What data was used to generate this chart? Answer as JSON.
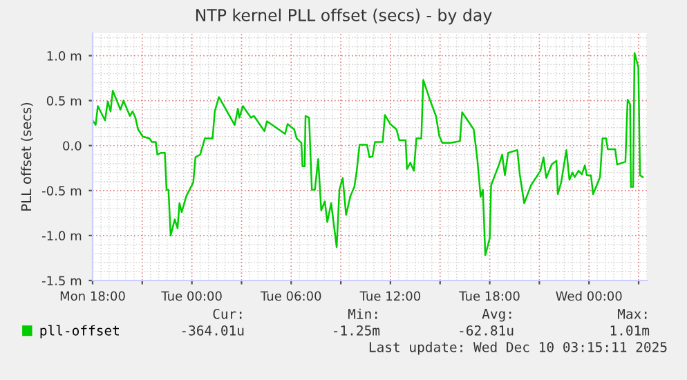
{
  "chart_data": {
    "type": "line",
    "title": "NTP kernel PLL offset (secs) - by day",
    "ylabel": "PLL offset (secs)",
    "x": [
      "2025-12-08T18:00",
      "2025-12-08T18:11",
      "2025-12-08T18:19",
      "2025-12-08T18:45",
      "2025-12-08T18:55",
      "2025-12-08T19:05",
      "2025-12-08T19:13",
      "2025-12-08T19:41",
      "2025-12-08T19:52",
      "2025-12-08T20:15",
      "2025-12-08T20:25",
      "2025-12-08T20:35",
      "2025-12-08T20:45",
      "2025-12-08T21:02",
      "2025-12-08T21:26",
      "2025-12-08T21:35",
      "2025-12-08T21:49",
      "2025-12-08T21:55",
      "2025-12-08T22:08",
      "2025-12-08T22:22",
      "2025-12-08T22:28",
      "2025-12-08T22:35",
      "2025-12-08T22:43",
      "2025-12-08T22:58",
      "2025-12-08T23:08",
      "2025-12-08T23:15",
      "2025-12-08T23:23",
      "2025-12-08T23:40",
      "2025-12-09T00:05",
      "2025-12-09T00:13",
      "2025-12-09T00:30",
      "2025-12-09T00:47",
      "2025-12-09T01:15",
      "2025-12-09T01:23",
      "2025-12-09T01:38",
      "2025-12-09T02:35",
      "2025-12-09T02:47",
      "2025-12-09T02:52",
      "2025-12-09T03:05",
      "2025-12-09T03:34",
      "2025-12-09T03:45",
      "2025-12-09T04:23",
      "2025-12-09T04:32",
      "2025-12-09T05:38",
      "2025-12-09T05:47",
      "2025-12-09T06:11",
      "2025-12-09T06:20",
      "2025-12-09T06:37",
      "2025-12-09T06:41",
      "2025-12-09T06:49",
      "2025-12-09T06:52",
      "2025-12-09T07:05",
      "2025-12-09T07:15",
      "2025-12-09T07:26",
      "2025-12-09T07:38",
      "2025-12-09T07:49",
      "2025-12-09T08:02",
      "2025-12-09T08:11",
      "2025-12-09T08:25",
      "2025-12-09T08:45",
      "2025-12-09T08:55",
      "2025-12-09T09:07",
      "2025-12-09T09:19",
      "2025-12-09T09:35",
      "2025-12-09T09:49",
      "2025-12-09T09:57",
      "2025-12-09T10:08",
      "2025-12-09T10:35",
      "2025-12-09T10:44",
      "2025-12-09T10:55",
      "2025-12-09T11:04",
      "2025-12-09T11:32",
      "2025-12-09T11:40",
      "2025-12-09T11:59",
      "2025-12-09T12:22",
      "2025-12-09T12:32",
      "2025-12-09T12:55",
      "2025-12-09T13:00",
      "2025-12-09T13:12",
      "2025-12-09T13:25",
      "2025-12-09T13:34",
      "2025-12-09T13:52",
      "2025-12-09T13:59",
      "2025-12-09T14:23",
      "2025-12-09T14:45",
      "2025-12-09T14:57",
      "2025-12-09T15:08",
      "2025-12-09T15:38",
      "2025-12-09T16:12",
      "2025-12-09T16:20",
      "2025-12-09T17:02",
      "2025-12-09T17:15",
      "2025-12-09T17:27",
      "2025-12-09T17:35",
      "2025-12-09T17:44",
      "2025-12-09T18:00",
      "2025-12-09T18:05",
      "2025-12-09T18:34",
      "2025-12-09T18:45",
      "2025-12-09T18:55",
      "2025-12-09T19:07",
      "2025-12-09T19:40",
      "2025-12-09T19:49",
      "2025-12-09T20:05",
      "2025-12-09T20:30",
      "2025-12-09T21:04",
      "2025-12-09T21:15",
      "2025-12-09T21:25",
      "2025-12-09T21:45",
      "2025-12-09T22:02",
      "2025-12-09T22:07",
      "2025-12-09T22:19",
      "2025-12-09T22:38",
      "2025-12-09T22:49",
      "2025-12-09T23:00",
      "2025-12-09T23:08",
      "2025-12-09T23:22",
      "2025-12-09T23:34",
      "2025-12-09T23:45",
      "2025-12-09T23:52",
      "2025-12-10T00:07",
      "2025-12-10T00:15",
      "2025-12-10T00:40",
      "2025-12-10T00:49",
      "2025-12-10T01:02",
      "2025-12-10T01:08",
      "2025-12-10T01:35",
      "2025-12-10T01:42",
      "2025-12-10T02:12",
      "2025-12-10T02:20",
      "2025-12-10T02:29",
      "2025-12-10T02:32",
      "2025-12-10T02:40",
      "2025-12-10T02:45",
      "2025-12-10T02:59",
      "2025-12-10T03:05",
      "2025-12-10T03:15"
    ],
    "series": [
      {
        "name": "pll-offset",
        "color": "#00cc00",
        "values": [
          0.28,
          0.23,
          0.44,
          0.28,
          0.49,
          0.38,
          0.61,
          0.4,
          0.5,
          0.33,
          0.38,
          0.31,
          0.18,
          0.1,
          0.08,
          0.04,
          0.04,
          -0.1,
          -0.08,
          -0.08,
          -0.49,
          -0.49,
          -1.0,
          -0.82,
          -0.92,
          -0.64,
          -0.74,
          -0.56,
          -0.41,
          -0.13,
          -0.1,
          0.08,
          0.08,
          0.38,
          0.54,
          0.23,
          0.41,
          0.31,
          0.44,
          0.31,
          0.33,
          0.16,
          0.27,
          0.13,
          0.24,
          0.18,
          0.08,
          0.03,
          -0.23,
          -0.23,
          0.33,
          0.31,
          -0.49,
          -0.49,
          -0.15,
          -0.72,
          -0.62,
          -0.85,
          -0.64,
          -1.13,
          -0.49,
          -0.36,
          -0.77,
          -0.56,
          -0.46,
          -0.3,
          0.01,
          0.01,
          -0.13,
          -0.12,
          0.04,
          0.04,
          0.34,
          0.24,
          0.18,
          0.06,
          0.06,
          -0.26,
          -0.19,
          -0.28,
          0.08,
          0.08,
          0.73,
          0.51,
          0.33,
          0.11,
          0.03,
          0.03,
          0.05,
          0.37,
          0.18,
          -0.15,
          -0.57,
          -0.49,
          -1.22,
          -1.03,
          -0.44,
          -0.21,
          -0.1,
          -0.33,
          -0.08,
          -0.05,
          -0.32,
          -0.64,
          -0.44,
          -0.28,
          -0.13,
          -0.36,
          -0.21,
          -0.17,
          -0.54,
          -0.41,
          -0.05,
          -0.38,
          -0.3,
          -0.35,
          -0.28,
          -0.32,
          -0.22,
          -0.33,
          -0.33,
          -0.54,
          -0.35,
          0.08,
          0.08,
          -0.04,
          -0.04,
          -0.21,
          -0.18,
          0.51,
          0.46,
          -0.46,
          -0.46,
          1.03,
          0.87,
          -0.33,
          -0.35
        ]
      }
    ],
    "xlim": [
      "2025-12-08T18:00",
      "2025-12-10T03:30"
    ],
    "xticks": [
      {
        "value": "2025-12-08T18:00",
        "label": "Mon 18:00"
      },
      {
        "value": "2025-12-08T21:00",
        "label": null
      },
      {
        "value": "2025-12-09T00:00",
        "label": "Tue 00:00"
      },
      {
        "value": "2025-12-09T03:00",
        "label": null
      },
      {
        "value": "2025-12-09T06:00",
        "label": "Tue 06:00"
      },
      {
        "value": "2025-12-09T09:00",
        "label": null
      },
      {
        "value": "2025-12-09T12:00",
        "label": "Tue 12:00"
      },
      {
        "value": "2025-12-09T15:00",
        "label": null
      },
      {
        "value": "2025-12-09T18:00",
        "label": "Tue 18:00"
      },
      {
        "value": "2025-12-09T21:00",
        "label": null
      },
      {
        "value": "2025-12-10T00:00",
        "label": "Wed 00:00"
      },
      {
        "value": "2025-12-10T03:00",
        "label": null
      }
    ],
    "ylim": [
      -1.5,
      1.25
    ],
    "yticks": [
      {
        "value": -1.5,
        "label": "-1.5 m"
      },
      {
        "value": -1.0,
        "label": "-1.0 m"
      },
      {
        "value": -0.5,
        "label": "-0.5 m"
      },
      {
        "value": 0.0,
        "label": "0.0"
      },
      {
        "value": 0.5,
        "label": "0.5 m"
      },
      {
        "value": 1.0,
        "label": "1.0 m"
      }
    ],
    "grid": true,
    "legend": "bottom left",
    "marker": "none",
    "line_style": "solid",
    "annotations": [
      "Cur:",
      "Min:",
      "Avg:",
      "Max:",
      "-364.01u",
      "-1.25m",
      "-62.81u",
      "1.01m",
      "Last update: Wed Dec 10 03:15:11 2025"
    ]
  }
}
